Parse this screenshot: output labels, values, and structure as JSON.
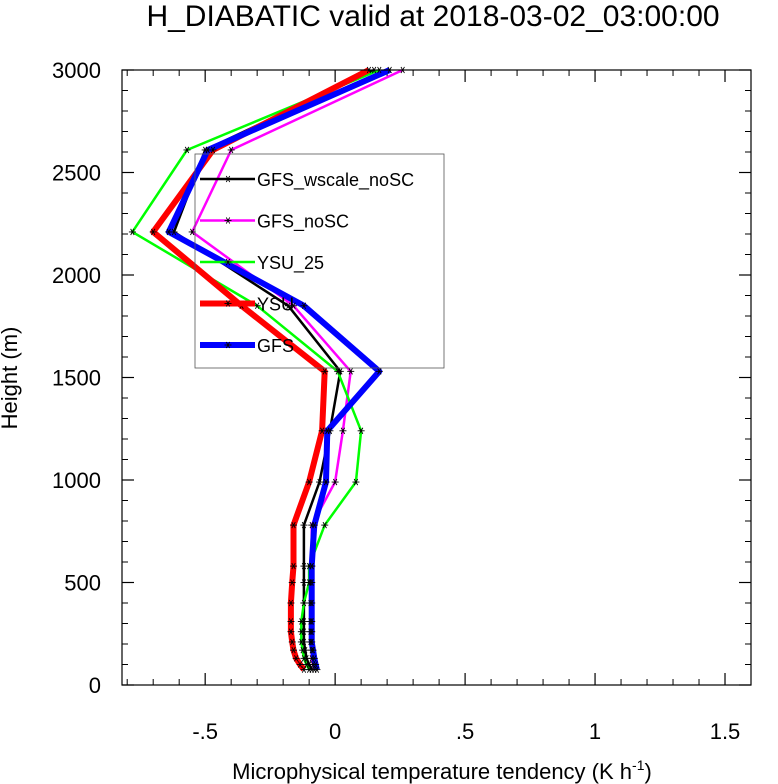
{
  "chart_data": {
    "type": "line",
    "title": "H_DIABATIC valid at 2018-03-02_03:00:00",
    "xlabel": "Microphysical temperature tendency (K h",
    "xlabel_sup": "-1",
    "xlabel_close": ")",
    "ylabel": "Height (m)",
    "xlim": [
      -0.82,
      1.6
    ],
    "ylim": [
      0,
      3000
    ],
    "x_ticks": [
      -0.5,
      0,
      0.5,
      1,
      1.5
    ],
    "x_tick_labels": [
      "-.5",
      "0",
      ".5",
      "1",
      "1.5"
    ],
    "y_ticks": [
      0,
      500,
      1000,
      1500,
      2000,
      2500,
      3000
    ],
    "y_tick_labels": [
      "0",
      "500",
      "1000",
      "1500",
      "2000",
      "2500",
      "3000"
    ],
    "grid": false,
    "legend_position": "upper-left, inside plot",
    "heights": [
      75,
      100,
      130,
      170,
      210,
      260,
      310,
      400,
      500,
      580,
      780,
      990,
      1240,
      1530,
      1850,
      2210,
      2610,
      3000
    ],
    "series": [
      {
        "name": "GFS_wscale_noSC",
        "color": "#000000",
        "width": 2.5,
        "values": [
          -0.09,
          -0.1,
          -0.11,
          -0.115,
          -0.12,
          -0.12,
          -0.12,
          -0.12,
          -0.12,
          -0.12,
          -0.12,
          -0.06,
          -0.02,
          0.02,
          -0.18,
          -0.62,
          -0.5,
          0.15
        ]
      },
      {
        "name": "GFS_noSC",
        "color": "#ff00ff",
        "width": 2.5,
        "values": [
          -0.08,
          -0.085,
          -0.09,
          -0.09,
          -0.095,
          -0.095,
          -0.095,
          -0.095,
          -0.095,
          -0.09,
          -0.09,
          0.0,
          0.03,
          0.06,
          -0.16,
          -0.55,
          -0.4,
          0.26
        ]
      },
      {
        "name": "YSU_25",
        "color": "#00ff00",
        "width": 2.5,
        "values": [
          -0.1,
          -0.11,
          -0.12,
          -0.125,
          -0.13,
          -0.13,
          -0.13,
          -0.12,
          -0.1,
          -0.1,
          -0.04,
          0.08,
          0.1,
          0.01,
          -0.3,
          -0.78,
          -0.57,
          0.17
        ]
      },
      {
        "name": "YSU",
        "color": "#ff0000",
        "width": 6,
        "values": [
          -0.12,
          -0.135,
          -0.15,
          -0.16,
          -0.165,
          -0.17,
          -0.17,
          -0.17,
          -0.165,
          -0.16,
          -0.16,
          -0.1,
          -0.05,
          -0.04,
          -0.36,
          -0.7,
          -0.47,
          0.13
        ]
      },
      {
        "name": "GFS",
        "color": "#0000ff",
        "width": 6,
        "values": [
          -0.07,
          -0.075,
          -0.08,
          -0.085,
          -0.09,
          -0.09,
          -0.09,
          -0.09,
          -0.09,
          -0.09,
          -0.08,
          -0.035,
          -0.03,
          0.17,
          -0.12,
          -0.64,
          -0.49,
          0.21
        ]
      }
    ]
  }
}
